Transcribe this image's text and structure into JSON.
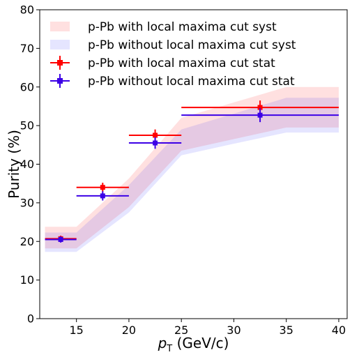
{
  "chart_data": {
    "type": "scatter",
    "xlabel": {
      "var": "p",
      "sub": "T",
      "unit": " (GeV/c)"
    },
    "ylabel": "Purity (%)",
    "xlim": [
      11.5,
      40.8
    ],
    "ylim": [
      0,
      80
    ],
    "xticks": [
      15,
      20,
      25,
      30,
      35,
      40
    ],
    "yticks": [
      0,
      10,
      20,
      30,
      40,
      50,
      60,
      70,
      80
    ],
    "legend_position": "top-left",
    "series": [
      {
        "name": "p-Pb with local maxima cut syst",
        "kind": "band",
        "color": "#ff0000",
        "fill_opacity": 0.12,
        "x": [
          12.0,
          15.0,
          20.0,
          25.0,
          30.0,
          35.0,
          40.0
        ],
        "low": [
          18.2,
          18.2,
          28.9,
          43.5,
          46.5,
          49.5,
          49.5
        ],
        "high": [
          23.8,
          23.8,
          36.3,
          52.0,
          56.0,
          60.0,
          60.0
        ]
      },
      {
        "name": "p-Pb without local maxima cut syst",
        "kind": "band",
        "color": "#0000ff",
        "fill_opacity": 0.1,
        "x": [
          12.0,
          15.0,
          20.0,
          25.0,
          30.0,
          35.0,
          40.0
        ],
        "low": [
          17.3,
          17.3,
          27.5,
          42.3,
          45.3,
          48.2,
          48.2
        ],
        "high": [
          22.3,
          22.3,
          34.6,
          49.0,
          53.1,
          57.2,
          57.2
        ]
      },
      {
        "name": "p-Pb with local maxima cut stat",
        "kind": "points",
        "color": "#ff0000",
        "points": [
          {
            "x": 13.5,
            "y": 20.7,
            "xlo": 12.0,
            "xhi": 15.0,
            "err": 0.8
          },
          {
            "x": 17.5,
            "y": 34.0,
            "xlo": 15.0,
            "xhi": 20.0,
            "err": 1.2
          },
          {
            "x": 22.5,
            "y": 47.5,
            "xlo": 20.0,
            "xhi": 25.0,
            "err": 1.5
          },
          {
            "x": 32.5,
            "y": 54.7,
            "xlo": 25.0,
            "xhi": 40.0,
            "err": 1.8
          }
        ]
      },
      {
        "name": "p-Pb without local maxima cut stat",
        "kind": "points",
        "color": "#3c00e6",
        "points": [
          {
            "x": 13.5,
            "y": 20.5,
            "xlo": 12.0,
            "xhi": 15.0,
            "err": 0.8
          },
          {
            "x": 17.5,
            "y": 31.8,
            "xlo": 15.0,
            "xhi": 20.0,
            "err": 1.2
          },
          {
            "x": 22.5,
            "y": 45.5,
            "xlo": 20.0,
            "xhi": 25.0,
            "err": 1.5
          },
          {
            "x": 32.5,
            "y": 52.7,
            "xlo": 25.0,
            "xhi": 40.0,
            "err": 1.8
          }
        ]
      }
    ]
  }
}
